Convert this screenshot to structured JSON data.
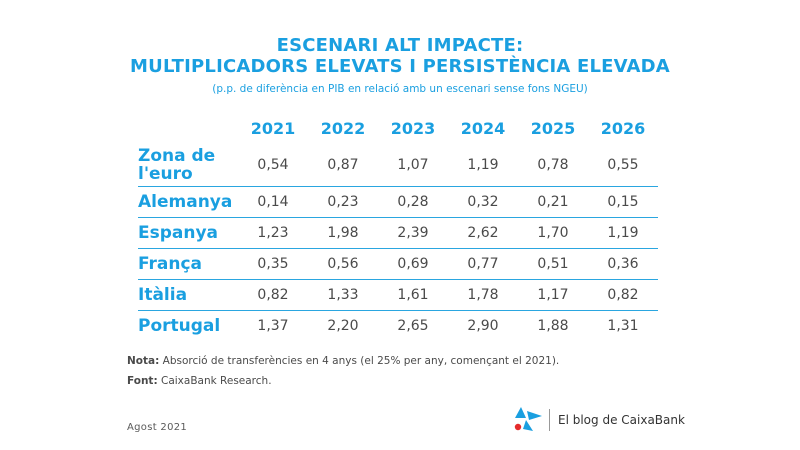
{
  "chart_data": {
    "type": "table",
    "title_line1": "ESCENARI ALT IMPACTE:",
    "title_line2": "MULTIPLICADORS ELEVATS I PERSISTÈNCIA ELEVADA",
    "subtitle": "(p.p. de diferència en PIB en relació amb un escenari sense fons NGEU)",
    "columns": [
      "2021",
      "2022",
      "2023",
      "2024",
      "2025",
      "2026"
    ],
    "rows": [
      {
        "label": "Zona de l'euro",
        "values": [
          "0,54",
          "0,87",
          "1,07",
          "1,19",
          "0,78",
          "0,55"
        ]
      },
      {
        "label": "Alemanya",
        "values": [
          "0,14",
          "0,23",
          "0,28",
          "0,32",
          "0,21",
          "0,15"
        ]
      },
      {
        "label": "Espanya",
        "values": [
          "1,23",
          "1,98",
          "2,39",
          "2,62",
          "1,70",
          "1,19"
        ]
      },
      {
        "label": "França",
        "values": [
          "0,35",
          "0,56",
          "0,69",
          "0,77",
          "0,51",
          "0,36"
        ]
      },
      {
        "label": "Itàlia",
        "values": [
          "0,82",
          "1,33",
          "1,61",
          "1,78",
          "1,17",
          "0,82"
        ]
      },
      {
        "label": "Portugal",
        "values": [
          "1,37",
          "2,20",
          "2,65",
          "2,90",
          "1,88",
          "1,31"
        ]
      }
    ]
  },
  "notes": {
    "nota_label": "Nota:",
    "nota_text": " Absorció de transferències en 4 anys (el 25% per any, començant el 2021).",
    "font_label": "Font:",
    "font_text": " CaixaBank Research."
  },
  "footer": {
    "date": "Agost 2021",
    "brand": "El blog de CaixaBank",
    "brand_logo_icon": "caixabank-star-icon"
  },
  "colors": {
    "accent": "#1a9fe0",
    "logo_dot": "#e52b2b"
  }
}
